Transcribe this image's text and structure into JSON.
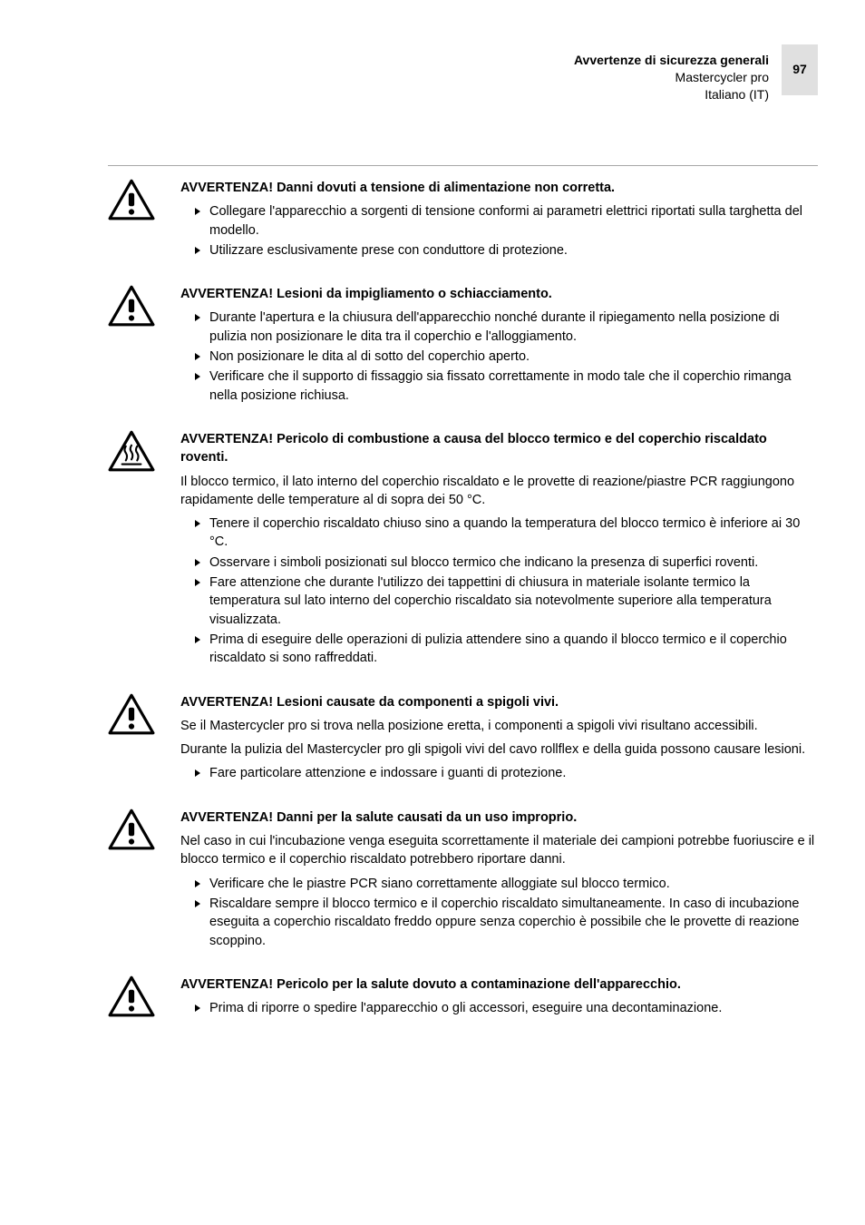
{
  "header": {
    "line1": "Avvertenze di sicurezza generali",
    "line2": "Mastercycler pro",
    "line3": "Italiano (IT)",
    "page_num": "97"
  },
  "colors": {
    "text": "#000000",
    "border": "#a8a8a8",
    "pagebox_bg": "#e0e0e0",
    "background": "#ffffff"
  },
  "typography": {
    "body_fontsize": 14.5,
    "header_fontsize": 14,
    "title_weight": "bold"
  },
  "warnings": [
    {
      "icon": "warning-exclamation",
      "title": "AVVERTENZA! Danni dovuti a tensione di alimentazione non corretta.",
      "intro": "",
      "bullets": [
        "Collegare l'apparecchio a sorgenti di tensione conformi ai parametri elettrici riportati sulla targhetta del modello.",
        "Utilizzare esclusivamente prese con conduttore di protezione."
      ]
    },
    {
      "icon": "warning-exclamation",
      "title": "AVVERTENZA! Lesioni da impigliamento o schiacciamento.",
      "intro": "",
      "bullets": [
        "Durante l'apertura e la chiusura dell'apparecchio nonché durante il ripiegamento nella posizione di pulizia non posizionare le dita tra il coperchio e l'alloggiamento.",
        "Non posizionare le dita al di sotto del coperchio aperto.",
        "Verificare che il supporto di fissaggio  sia fissato correttamente in modo tale che il coperchio rimanga  nella posizione richiusa."
      ]
    },
    {
      "icon": "warning-hot",
      "title": "AVVERTENZA! Pericolo di combustione a causa del blocco termico e del coperchio riscaldato roventi.",
      "intro": "Il blocco termico, il lato interno del coperchio riscaldato e le provette di reazione/piastre PCR raggiungono rapidamente delle temperature al di sopra dei 50 °C.",
      "bullets": [
        "Tenere il coperchio riscaldato chiuso sino a quando la temperatura del blocco termico è inferiore ai 30  °C.",
        "Osservare i simboli posizionati sul blocco termico che indicano la presenza di superfici roventi.",
        "Fare attenzione che durante l'utilizzo dei tappettini di chiusura in materiale isolante termico  la temperatura sul lato interno del coperchio riscaldato sia notevolmente superiore alla  temperatura visualizzata.",
        "Prima di eseguire delle operazioni di pulizia attendere sino a quando il blocco termico e il coperchio riscaldato si sono raffreddati."
      ]
    },
    {
      "icon": "warning-exclamation",
      "title": "AVVERTENZA! Lesioni causate da componenti a spigoli vivi.",
      "intro": "Se il  Mastercycler pro si trova nella posizione eretta, i componenti a spigoli vivi risultano accessibili.\nDurante la pulizia del  Mastercycler pro gli spigoli vivi del cavo rollflex  e della guida possono causare lesioni.",
      "bullets": [
        "Fare particolare attenzione e indossare i guanti di protezione."
      ]
    },
    {
      "icon": "warning-exclamation",
      "title": "AVVERTENZA! Danni per la salute causati da un uso improprio.",
      "intro": "Nel caso in cui l'incubazione venga eseguita scorrettamente il materiale dei campioni potrebbe fuoriuscire e il blocco termico e il coperchio riscaldato potrebbero riportare danni.",
      "bullets": [
        "Verificare che le piastre PCR siano correttamente alloggiate sul blocco termico.",
        "Riscaldare sempre il blocco termico e il coperchio riscaldato simultaneamente. In caso di incubazione eseguita a coperchio riscaldato freddo oppure senza coperchio è possibile che le provette di reazione scoppino."
      ]
    },
    {
      "icon": "warning-exclamation",
      "title": "AVVERTENZA! Pericolo per la salute dovuto a contaminazione dell'apparecchio.",
      "intro": "",
      "bullets": [
        "Prima di riporre o spedire l'apparecchio o gli accessori, eseguire una decontaminazione."
      ]
    }
  ]
}
